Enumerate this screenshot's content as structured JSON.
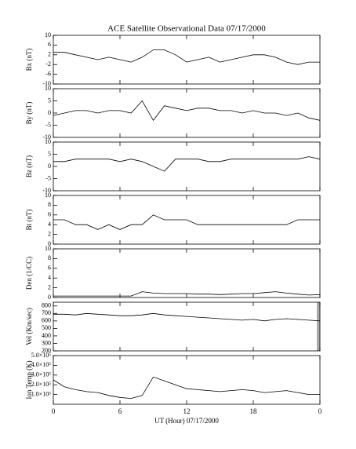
{
  "chart_data": [
    {
      "type": "line",
      "title": "ACE Satellite Observational Data   07/17/2000",
      "ylabel": "Bx (nT)",
      "color": "#000000",
      "x": [
        0,
        1,
        2,
        3,
        4,
        5,
        6,
        7,
        8,
        9,
        10,
        11,
        12,
        13,
        14,
        15,
        16,
        17,
        18,
        19,
        20,
        21,
        22,
        23,
        24
      ],
      "values": [
        3,
        3,
        2,
        1,
        0,
        1,
        0,
        -1,
        1,
        4,
        4,
        2,
        -1,
        0,
        1,
        -1,
        0,
        1,
        2,
        2,
        1,
        -1,
        -2,
        -1,
        -1
      ],
      "xlim": [
        0,
        24
      ],
      "ylim": [
        -10,
        10
      ],
      "yticks": [
        -10,
        -6,
        -2,
        2,
        6,
        10
      ]
    },
    {
      "type": "line",
      "ylabel": "By (nT)",
      "color": "#000000",
      "x": [
        0,
        1,
        2,
        3,
        4,
        5,
        6,
        7,
        8,
        9,
        10,
        11,
        12,
        13,
        14,
        15,
        16,
        17,
        18,
        19,
        20,
        21,
        22,
        23,
        24
      ],
      "values": [
        -1,
        0,
        1,
        1,
        0,
        1,
        1,
        0,
        5,
        -3,
        3,
        2,
        1,
        2,
        2,
        1,
        1,
        0,
        1,
        0,
        0,
        -1,
        0,
        -2,
        -3
      ],
      "xlim": [
        0,
        24
      ],
      "ylim": [
        -10,
        10
      ],
      "yticks": [
        -10,
        -5,
        0,
        5,
        10
      ]
    },
    {
      "type": "line",
      "ylabel": "Bz (nT)",
      "color": "#000000",
      "x": [
        0,
        1,
        2,
        3,
        4,
        5,
        6,
        7,
        8,
        9,
        10,
        11,
        12,
        13,
        14,
        15,
        16,
        17,
        18,
        19,
        20,
        21,
        22,
        23,
        24
      ],
      "values": [
        2,
        2,
        3,
        3,
        3,
        3,
        2,
        3,
        2,
        0,
        -2,
        3,
        3,
        3,
        2,
        2,
        3,
        3,
        3,
        3,
        3,
        3,
        3,
        4,
        3
      ],
      "xlim": [
        0,
        24
      ],
      "ylim": [
        -10,
        10
      ],
      "yticks": [
        -10,
        -5,
        0,
        5,
        10
      ]
    },
    {
      "type": "line",
      "ylabel": "Bt (nT)",
      "color": "#000000",
      "x": [
        0,
        1,
        2,
        3,
        4,
        5,
        6,
        7,
        8,
        9,
        10,
        11,
        12,
        13,
        14,
        15,
        16,
        17,
        18,
        19,
        20,
        21,
        22,
        23,
        24
      ],
      "values": [
        5,
        5,
        4,
        4,
        3,
        4,
        3,
        4,
        4,
        6,
        5,
        5,
        5,
        4,
        4,
        4,
        4,
        4,
        4,
        4,
        4,
        4,
        5,
        5,
        5
      ],
      "xlim": [
        0,
        24
      ],
      "ylim": [
        0,
        10
      ],
      "yticks": [
        0,
        2,
        4,
        6,
        8,
        10
      ]
    },
    {
      "type": "line",
      "ylabel": "Den (1/CC)",
      "color": "#000000",
      "x": [
        0,
        1,
        2,
        3,
        4,
        5,
        6,
        7,
        8,
        9,
        10,
        11,
        12,
        13,
        14,
        15,
        16,
        17,
        18,
        19,
        20,
        21,
        22,
        23,
        24
      ],
      "values": [
        0.3,
        0.3,
        0.3,
        0.3,
        0.3,
        0.3,
        0.3,
        0.3,
        1.2,
        0.9,
        0.8,
        0.8,
        0.8,
        0.7,
        0.7,
        0.6,
        0.7,
        0.8,
        0.8,
        1.0,
        1.2,
        0.9,
        0.7,
        0.5,
        0.6
      ],
      "xlim": [
        0,
        24
      ],
      "ylim": [
        0,
        10
      ],
      "yticks": [
        0,
        2,
        4,
        6,
        8,
        10
      ]
    },
    {
      "type": "line",
      "ylabel": "Vel (Km/sec)",
      "color": "#000000",
      "x": [
        0,
        1,
        2,
        3,
        4,
        5,
        6,
        7,
        8,
        9,
        10,
        11,
        12,
        13,
        14,
        15,
        16,
        17,
        18,
        19,
        20,
        21,
        22,
        23,
        24
      ],
      "values": [
        690,
        690,
        680,
        700,
        690,
        680,
        670,
        670,
        680,
        700,
        680,
        670,
        660,
        650,
        640,
        630,
        620,
        610,
        620,
        600,
        620,
        630,
        620,
        610,
        600
      ],
      "xlim": [
        0,
        24
      ],
      "ylim": [
        200,
        850
      ],
      "yticks": [
        200,
        300,
        400,
        500,
        600,
        700,
        800
      ]
    },
    {
      "type": "line",
      "ylabel": "Ion Temp (K)",
      "xlabel": "UT (Hour)   07/17/2000",
      "color": "#000000",
      "x": [
        0,
        1,
        2,
        3,
        4,
        5,
        6,
        7,
        8,
        9,
        10,
        11,
        12,
        13,
        14,
        15,
        16,
        17,
        18,
        19,
        20,
        21,
        22,
        23,
        24
      ],
      "values": [
        250000,
        180000,
        150000,
        130000,
        120000,
        90000,
        70000,
        60000,
        90000,
        280000,
        240000,
        200000,
        160000,
        150000,
        140000,
        130000,
        140000,
        150000,
        140000,
        120000,
        130000,
        140000,
        120000,
        100000,
        100000
      ],
      "xlim": [
        0,
        24
      ],
      "ylim": [
        0,
        500000
      ],
      "yticks": [
        {
          "value": 100000,
          "label": "1.0×10⁵"
        },
        {
          "value": 200000,
          "label": "2.0×10⁵"
        },
        {
          "value": 300000,
          "label": "3.0×10⁵"
        },
        {
          "value": 400000,
          "label": "4.0×10⁵"
        },
        {
          "value": 500000,
          "label": "5.0×10⁵"
        }
      ],
      "xticks": [
        0,
        6,
        12,
        18,
        {
          "value": 24,
          "label": "0"
        }
      ]
    }
  ]
}
